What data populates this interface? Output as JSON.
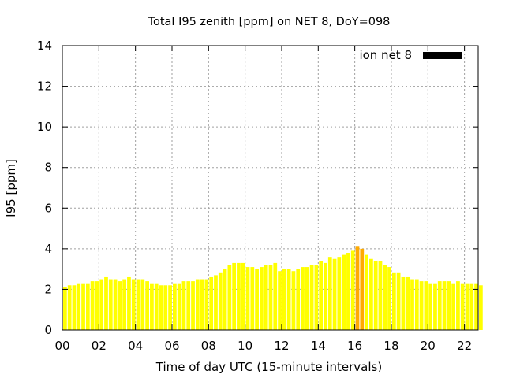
{
  "chart_data": {
    "type": "bar",
    "title": "Total I95 zenith [ppm] on NET 8, DoY=098",
    "xlabel": "Time of day UTC (15-minute intervals)",
    "ylabel": "I95 [ppm]",
    "ylim": [
      0,
      14
    ],
    "xlim": [
      0,
      22.75
    ],
    "grid": true,
    "legend": {
      "placement": "top-right",
      "entries": [
        {
          "label": "ion net 8",
          "color": "#000000"
        }
      ]
    },
    "colors": {
      "normal": "#ffff00",
      "elevated": "#ffaa00"
    },
    "elevated_threshold": 4.0,
    "x_ticks": [
      "00",
      "02",
      "04",
      "06",
      "08",
      "10",
      "12",
      "14",
      "16",
      "18",
      "20",
      "22"
    ],
    "y_ticks": [
      "0",
      "2",
      "4",
      "6",
      "8",
      "10",
      "12",
      "14"
    ],
    "interval_hours": 0.25,
    "values": [
      2.1,
      2.2,
      2.2,
      2.3,
      2.3,
      2.3,
      2.4,
      2.4,
      2.5,
      2.6,
      2.5,
      2.5,
      2.4,
      2.5,
      2.6,
      2.5,
      2.5,
      2.5,
      2.4,
      2.3,
      2.3,
      2.2,
      2.2,
      2.2,
      2.3,
      2.3,
      2.4,
      2.4,
      2.4,
      2.5,
      2.5,
      2.5,
      2.6,
      2.7,
      2.8,
      3.0,
      3.2,
      3.3,
      3.3,
      3.3,
      3.1,
      3.1,
      3.0,
      3.1,
      3.2,
      3.2,
      3.3,
      2.9,
      3.0,
      3.0,
      2.9,
      3.0,
      3.1,
      3.1,
      3.2,
      3.2,
      3.4,
      3.3,
      3.6,
      3.5,
      3.6,
      3.7,
      3.8,
      3.9,
      4.1,
      4.0,
      3.7,
      3.5,
      3.4,
      3.4,
      3.2,
      3.1,
      2.8,
      2.8,
      2.6,
      2.6,
      2.5,
      2.5,
      2.4,
      2.4,
      2.3,
      2.3,
      2.4,
      2.4,
      2.4,
      2.3,
      2.4,
      2.3,
      2.3,
      2.3,
      2.3,
      2.2
    ]
  }
}
